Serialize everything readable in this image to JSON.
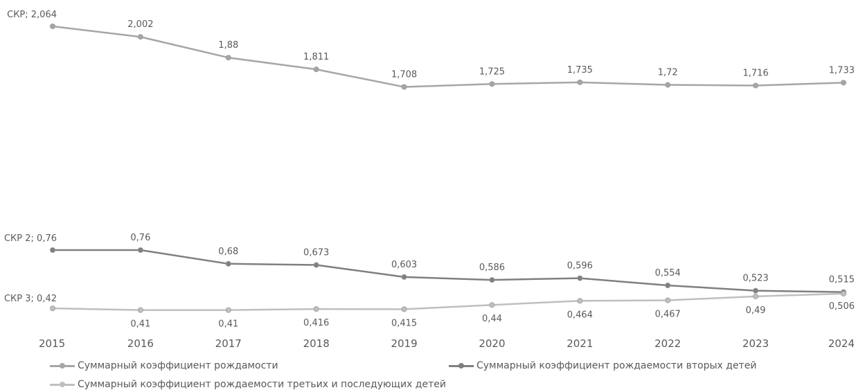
{
  "chart_data": {
    "type": "line",
    "categories": [
      "2015",
      "2016",
      "2017",
      "2018",
      "2019",
      "2020",
      "2021",
      "2022",
      "2023",
      "2024"
    ],
    "series": [
      {
        "name": "Суммарный коэффициент рождамости",
        "values": [
          2.064,
          2.002,
          1.88,
          1.811,
          1.708,
          1.725,
          1.735,
          1.72,
          1.716,
          1.733
        ],
        "labels": [
          "СКР; 2,064",
          "2,002",
          "1,88",
          "1,811",
          "1,708",
          "1,725",
          "1,735",
          "1,72",
          "1,716",
          "1,733"
        ],
        "color": "#a6a6a6"
      },
      {
        "name": "Суммарный коэффициент рождаемости вторых детей",
        "values": [
          0.76,
          0.76,
          0.68,
          0.673,
          0.603,
          0.586,
          0.596,
          0.554,
          0.523,
          0.515
        ],
        "labels": [
          "СКР 2; 0,76",
          "0,76",
          "0,68",
          "0,673",
          "0,603",
          "0,586",
          "0,596",
          "0,554",
          "0,523",
          "0,515"
        ],
        "color": "#7f7f7f"
      },
      {
        "name": "Суммарный коэффициент рождаемости третьих и последующих детей",
        "values": [
          0.42,
          0.41,
          0.41,
          0.416,
          0.415,
          0.44,
          0.464,
          0.467,
          0.49,
          0.506
        ],
        "labels": [
          "СКР 3; 0,42",
          "0,41",
          "0,41",
          "0,416",
          "0,415",
          "0,44",
          "0,464",
          "0,467",
          "0,49",
          "0,506"
        ],
        "color": "#bfbfbf"
      }
    ],
    "title": "",
    "xlabel": "",
    "ylabel": "",
    "grid": false,
    "legend_position": "bottom"
  }
}
